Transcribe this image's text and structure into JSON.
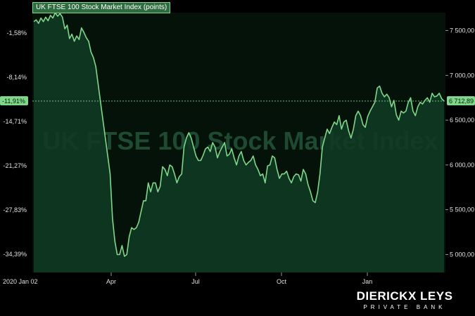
{
  "chart_data": {
    "type": "area",
    "title": "UK FTSE 100 Stock Market Index (points)",
    "watermark": "UK FTSE 100 Stock Market Index",
    "y_left_ticks": [
      "-1,58%",
      "-8,14%",
      "-14,71%",
      "-21,27%",
      "-27,83%",
      "-34,39%"
    ],
    "y_right_ticks": [
      "7 500,00",
      "7 000,00",
      "6 500,00",
      "6 000,00",
      "5 500,00",
      "5 000,00"
    ],
    "x_ticks": [
      "2020 Jan 02",
      "Apr",
      "Jul",
      "Oct",
      "Jan"
    ],
    "ylim": [
      4800,
      7700
    ],
    "current_left": "-11,91%",
    "current_right": "6 712,89",
    "current_value": 6712.89,
    "colors": {
      "line": "#7fd88a",
      "fill": "#0f3a22",
      "badge": "#7fd88a"
    },
    "series": [
      {
        "x": 0,
        "values": [
          7600,
          7620,
          7580,
          7640,
          7600,
          7650,
          7610,
          7670,
          7640,
          7700,
          7660,
          7690,
          7650,
          7520,
          7560,
          7410,
          7460,
          7380,
          7440,
          7400,
          7530,
          7480,
          7420,
          7380,
          7260,
          7200,
          7100,
          6900,
          6700,
          6500,
          6300,
          6100,
          5900,
          5400,
          5150,
          5000,
          5000,
          5100,
          4980,
          5000,
          5200,
          5300,
          5280,
          5300,
          5360,
          5480,
          5600,
          5600,
          5800,
          5700,
          5800,
          5800,
          5700,
          5760,
          5980,
          5950,
          5880,
          6000,
          5980,
          5900,
          5800,
          5870,
          5900,
          6200,
          6300,
          6360,
          6300,
          6200,
          6100,
          6050,
          6050,
          6110,
          6180,
          6200,
          6150,
          6250,
          6200,
          6080,
          6150,
          6200,
          6250,
          6100,
          6120,
          6180,
          6080,
          6000,
          6100,
          6150,
          6050,
          6000,
          6030,
          6050,
          6100,
          6000,
          5950,
          5880,
          5900,
          5800,
          5990,
          6000,
          6100,
          6080,
          5950,
          5850,
          5900,
          5900,
          5930,
          5850,
          5800,
          5870,
          5900,
          5890,
          5820,
          5950,
          5900,
          5780,
          5700,
          5600,
          5580,
          5700,
          5900,
          6200,
          6300,
          6400,
          6350,
          6420,
          6480,
          6450,
          6550,
          6400,
          6480,
          6500,
          6380,
          6300,
          6400,
          6550,
          6600,
          6550,
          6450,
          6420,
          6540,
          6600,
          6650,
          6700,
          6860,
          6880,
          6800,
          6760,
          6790,
          6750,
          6650,
          6720,
          6560,
          6500,
          6600,
          6580,
          6600,
          6700,
          6750,
          6600,
          6550,
          6650,
          6700,
          6680,
          6720,
          6750,
          6700,
          6800,
          6760,
          6770,
          6800,
          6740,
          6712.89
        ]
      }
    ]
  }
}
